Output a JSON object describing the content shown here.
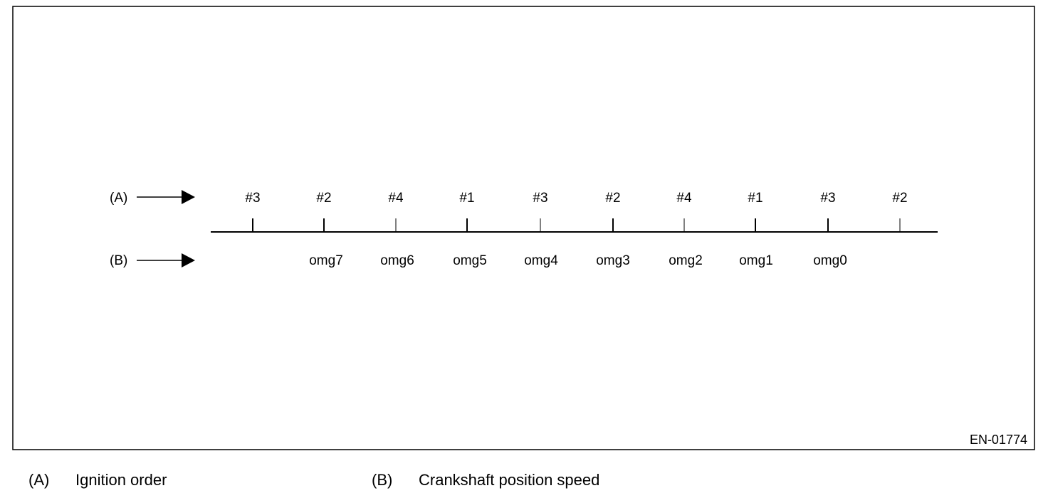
{
  "diagram": {
    "code": "EN-01774",
    "row_a": {
      "key": "(A)",
      "labels": [
        "#3",
        "#2",
        "#4",
        "#1",
        "#3",
        "#2",
        "#4",
        "#1",
        "#3",
        "#2"
      ]
    },
    "row_b": {
      "key": "(B)",
      "labels": [
        "omg7",
        "omg6",
        "omg5",
        "omg4",
        "omg3",
        "omg2",
        "omg1",
        "omg0"
      ]
    }
  },
  "legend": [
    {
      "key": "(A)",
      "text": "Ignition order"
    },
    {
      "key": "(B)",
      "text": "Crankshaft position speed"
    }
  ]
}
